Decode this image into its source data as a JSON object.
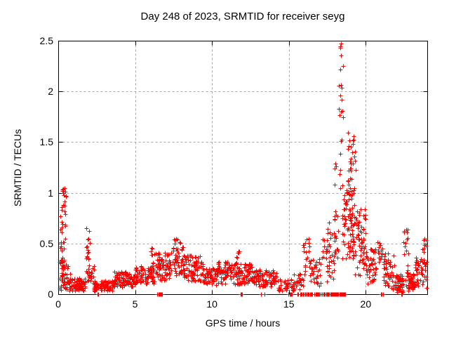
{
  "chart_data": {
    "type": "scatter",
    "title": "Day 248 of 2023, SRMTID for receiver seyg",
    "xlabel": "GPS time / hours",
    "ylabel": "SRMTID / TECUs",
    "xlim": [
      0,
      24
    ],
    "ylim": [
      0,
      2.5
    ],
    "xticks": [
      0,
      5,
      10,
      15,
      20
    ],
    "xtick_labels": [
      "0",
      "5",
      "10",
      "15",
      "20"
    ],
    "yticks": [
      0,
      0.5,
      1,
      1.5,
      2,
      2.5
    ],
    "ytick_labels": [
      "0",
      "0.5",
      "1",
      "1.5",
      "2",
      "2.5"
    ],
    "grid": true,
    "grid_color": "#a8a8a8",
    "border_color": "#000000",
    "marker": "plus",
    "marker_color": "#ff0000",
    "legend": "none",
    "max_point": {
      "x": 18.4,
      "y": 2.47
    },
    "seed": 20230248,
    "clusters": [
      [
        0.08,
        0.38,
        40,
        0.04,
        0.5
      ],
      [
        0.1,
        0.45,
        18,
        0.45,
        0.9
      ],
      [
        0.25,
        0.5,
        10,
        0.85,
        1.05
      ],
      [
        0.4,
        0.8,
        20,
        0.05,
        0.3
      ],
      [
        0.5,
        1.75,
        75,
        0.03,
        0.16
      ],
      [
        1.78,
        2.05,
        28,
        0.12,
        0.66
      ],
      [
        2.0,
        2.35,
        15,
        0.08,
        0.3
      ],
      [
        2.3,
        3.6,
        85,
        0.03,
        0.13
      ],
      [
        3.6,
        5.0,
        95,
        0.07,
        0.22
      ],
      [
        5.0,
        6.25,
        85,
        0.1,
        0.28
      ],
      [
        6.0,
        6.35,
        10,
        0.25,
        0.46
      ],
      [
        6.35,
        7.35,
        70,
        0.13,
        0.42
      ],
      [
        7.45,
        8.1,
        50,
        0.18,
        0.56
      ],
      [
        8.1,
        9.4,
        85,
        0.13,
        0.38
      ],
      [
        9.4,
        10.35,
        60,
        0.09,
        0.26
      ],
      [
        10.35,
        11.35,
        65,
        0.1,
        0.33
      ],
      [
        11.35,
        12.65,
        85,
        0.09,
        0.3
      ],
      [
        11.55,
        11.78,
        8,
        0.3,
        0.43
      ],
      [
        12.65,
        14.3,
        95,
        0.07,
        0.24
      ],
      [
        14.3,
        15.35,
        40,
        0.03,
        0.15
      ],
      [
        15.35,
        16.0,
        22,
        0.05,
        0.2
      ],
      [
        15.9,
        16.35,
        18,
        0.2,
        0.55
      ],
      [
        16.35,
        17.1,
        32,
        0.08,
        0.35
      ],
      [
        17.15,
        17.45,
        10,
        0.35,
        0.7
      ],
      [
        17.45,
        18.0,
        32,
        0.1,
        0.75
      ],
      [
        17.95,
        18.35,
        26,
        0.35,
        1.3
      ],
      [
        18.25,
        18.55,
        14,
        1.3,
        2.3
      ],
      [
        18.3,
        18.5,
        4,
        2.2,
        2.45
      ],
      [
        18.45,
        19.3,
        95,
        0.35,
        1.15
      ],
      [
        18.85,
        19.35,
        22,
        1.2,
        1.6
      ],
      [
        19.3,
        20.0,
        55,
        0.18,
        0.85
      ],
      [
        20.0,
        20.7,
        45,
        0.1,
        0.45
      ],
      [
        20.75,
        21.1,
        16,
        0.3,
        0.55
      ],
      [
        21.1,
        21.9,
        45,
        0.05,
        0.4
      ],
      [
        21.9,
        22.45,
        50,
        0.02,
        0.2
      ],
      [
        22.45,
        22.75,
        20,
        0.05,
        0.65
      ],
      [
        22.75,
        23.2,
        45,
        0.03,
        0.2
      ],
      [
        23.2,
        23.6,
        25,
        0.08,
        0.38
      ],
      [
        23.6,
        23.97,
        28,
        0.05,
        0.55
      ]
    ],
    "zero_runs": [
      [
        2.52,
        2.64,
        3
      ],
      [
        6.45,
        6.78,
        9
      ],
      [
        11.86,
        12.04,
        4
      ],
      [
        13.18,
        13.55,
        5
      ],
      [
        14.85,
        15.25,
        8
      ],
      [
        15.5,
        16.3,
        18
      ],
      [
        16.4,
        17.0,
        16
      ],
      [
        17.05,
        17.38,
        12
      ],
      [
        17.4,
        18.12,
        42
      ],
      [
        18.15,
        18.48,
        14
      ],
      [
        18.5,
        18.68,
        6
      ],
      [
        21.0,
        21.16,
        7
      ],
      [
        22.25,
        22.45,
        4
      ]
    ]
  }
}
